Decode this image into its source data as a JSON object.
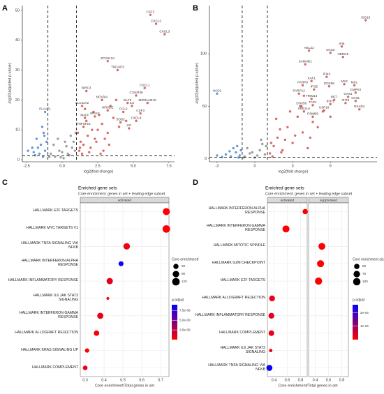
{
  "chart_data": [
    {
      "type": "scatter",
      "panel": "A",
      "x_label": "log2(fold change)",
      "y_label": "-log10(adjusted p-value)",
      "xlim": [
        -2.8,
        7.9
      ],
      "ylim": [
        -0.7,
        51.6
      ],
      "xticks": [
        -2.5,
        {
          "value": 0,
          "label": "0.0"
        },
        2.5,
        {
          "value": 5,
          "label": "5.0"
        },
        7.5
      ],
      "yticks": [
        0,
        10,
        20,
        30,
        40,
        50
      ],
      "vlines": [
        -1,
        1
      ],
      "hline": 1.3,
      "series": [
        {
          "color": "#4f86d1",
          "x": [
            -1.2,
            -1.5,
            -1.8,
            -2.1,
            -1.3,
            -1.6,
            -1.1,
            -2.4,
            -1.9,
            -1.4,
            -1.7,
            -1.25,
            -2.0,
            -1.35
          ],
          "y": [
            3,
            5,
            7,
            4,
            9,
            2,
            6,
            3,
            1.5,
            11,
            4,
            8,
            2.5,
            1
          ]
        },
        {
          "color": "#4f86d1",
          "x": [
            -1.2
          ],
          "y": [
            16
          ],
          "labels": [
            "PLAAT1"
          ]
        },
        {
          "color": "#8c8c8c",
          "x": [
            -0.8,
            -0.5,
            -0.2,
            0.1,
            0.4,
            0.7,
            -0.6,
            0.2,
            0.5,
            0.9,
            -0.3,
            0,
            0.6,
            -0.9,
            0.3,
            0.8,
            -0.1,
            0.95
          ],
          "y": [
            2,
            1,
            3,
            0.5,
            2,
            4,
            5,
            6,
            1.5,
            3,
            7,
            2.5,
            8,
            1,
            4.5,
            6,
            0.8,
            9
          ]
        },
        {
          "color": "#d5504a",
          "x": [
            1.2,
            1.5,
            1.8,
            2.1,
            2.4,
            2.8,
            3.2,
            3.6,
            4.0,
            1.4,
            1.7,
            2.0,
            2.6,
            3.0,
            3.4,
            1.3,
            2.2,
            2.9,
            3.8,
            4.5,
            1.1,
            1.9,
            2.5,
            3.3,
            1.6,
            2.3,
            1.25,
            2.7
          ],
          "y": [
            3,
            5,
            8,
            10,
            6,
            12,
            9,
            14,
            11,
            2,
            13,
            4,
            15,
            7,
            18,
            6,
            16,
            3,
            20,
            13,
            9,
            2.5,
            10,
            5,
            17,
            7,
            4,
            2
          ]
        },
        {
          "color": "#d5504a",
          "x": [
            6.2,
            6.6,
            7.2,
            3.2,
            3.9,
            5.8,
            5.2,
            6.0,
            1.7,
            2.8,
            1.4,
            4.6,
            3.2,
            4.3,
            4.9,
            5.5,
            5.2,
            4.1,
            4.7,
            1.6,
            2.3,
            1.5
          ],
          "y": [
            48.5,
            45.5,
            42,
            33,
            30,
            24,
            21.5,
            19,
            23,
            20,
            18,
            19,
            16.5,
            16,
            18,
            15.5,
            13,
            12.5,
            10.5,
            14,
            14.5,
            11
          ],
          "labels": [
            "CSF2",
            "CXCL2",
            "CXCL3",
            "ZC3H12A",
            "TNFAIP3",
            "CXCL1",
            "C15orf48",
            "MIR3142HG",
            "BIRC3",
            "NFKBIA",
            "SLC11A2",
            "ELF3",
            "NFKBIZ",
            "CCL2",
            "IL6",
            "CSF3",
            "CXCL8",
            "SOD2",
            "LIF",
            "MAFF",
            "IRAK2",
            "TNFSF15"
          ]
        }
      ]
    },
    {
      "type": "scatter",
      "panel": "B",
      "x_label": "log2(fold change)",
      "y_label": "-log10(adjusted p-value)",
      "xlim": [
        -3.6,
        9.7
      ],
      "ylim": [
        -3,
        146
      ],
      "xticks": [
        -3,
        0,
        3,
        6
      ],
      "yticks": [
        0,
        50,
        100
      ],
      "vlines": [
        -1,
        1
      ],
      "hline": 1.3,
      "series": [
        {
          "color": "#4f86d1",
          "x": [
            -1.2,
            -1.5,
            -1.9,
            -2.3,
            -1.1,
            -1.7,
            -2.6,
            -1.4,
            -2.0,
            -1.3,
            -3.0
          ],
          "y": [
            3,
            6,
            2,
            4,
            8,
            10,
            1.5,
            12,
            7,
            1,
            3
          ]
        },
        {
          "color": "#4f86d1",
          "x": [
            -3.0
          ],
          "y": [
            62
          ],
          "labels": [
            "HAO1"
          ]
        },
        {
          "color": "#8c8c8c",
          "x": [
            -0.8,
            -0.4,
            0,
            0.4,
            0.8,
            -0.6,
            0.2,
            0.6,
            -0.2,
            0.9,
            -0.9,
            0.5
          ],
          "y": [
            2,
            5,
            1,
            8,
            4,
            10,
            3,
            14,
            6,
            12,
            1,
            18
          ]
        },
        {
          "color": "#d5504a",
          "x": [
            1.2,
            1.5,
            1.8,
            2.2,
            2.6,
            3.0,
            3.4,
            3.8,
            4.2,
            4.6,
            1.4,
            2.0,
            2.8,
            3.6,
            4.4,
            5.0,
            1.7,
            2.4,
            3.2,
            5.4,
            6.0,
            1.3,
            2.1,
            3.9
          ],
          "y": [
            5,
            12,
            20,
            8,
            30,
            15,
            40,
            25,
            10,
            35,
            2,
            28,
            45,
            50,
            20,
            30,
            38,
            18,
            22,
            45,
            40,
            15,
            6,
            60
          ]
        },
        {
          "color": "#d5504a",
          "x": [
            8.8,
            6.9,
            7.0,
            6.0,
            4.3,
            4.0,
            5.7,
            4.5,
            5.9,
            7.9,
            7.1,
            8.0,
            3.8,
            4.7,
            3.5,
            4.5,
            6.0,
            6.3,
            7.4,
            7.2,
            8.0,
            8.3,
            3.7,
            4.6,
            3.9,
            4.6,
            5.5
          ],
          "y": [
            132,
            107,
            97,
            101,
            103,
            90,
            78,
            74,
            69,
            70,
            71,
            63,
            70,
            66,
            62,
            57,
            52,
            56,
            59,
            53,
            55,
            47,
            50,
            51,
            45,
            40,
            46
          ],
          "labels": [
            "ISG15",
            "IFI6",
            "HERC5",
            "OAS3",
            "HELZ2",
            "SAMHD1",
            "IFI44",
            "XAF1",
            "DDX58",
            "MX1",
            "MX2",
            "CMPK2",
            "PARP9",
            "IFI35",
            "PARP12",
            "TRIM14",
            "IFIH1",
            "IRF7",
            "OAS1",
            "IFIT3",
            "OASL",
            "RSAD2",
            "DHX58",
            "TAP1",
            "UBE2L6",
            "PSMB9",
            "USP18"
          ]
        }
      ]
    },
    {
      "type": "dot",
      "panel": "C",
      "title": "Enriched gene sets",
      "subtitle": "Core enrichment: genes in set + leading edge subset",
      "x_label": "Core enrichment/Total genes in set",
      "xlim": [
        0.274,
        0.744
      ],
      "xticks": [
        0.3,
        0.4,
        0.5,
        0.6,
        0.7
      ],
      "categories": [
        "HALLMARK E2F TARGETS",
        "HALLMARK MYC TARGETS V1",
        "HALLMARK TNFA SIGNALING VIA\nNFKB",
        "HALLMARK INTERFERON ALPHA\nRESPONSE",
        "HALLMARK INFLAMMATORY RESPONSE",
        "HALLMARK IL6 JAK STAT3\nSIGNALING",
        "HALLMARK INTERFERON GAMMA\nRESPONSE",
        "HALLMARK ALLOGRAFT REJECTION",
        "HALLMARK KRAS SIGNALING UP",
        "HALLMARK COMPLEMENT"
      ],
      "facets": [
        {
          "label": "activated",
          "x": [
            0.73,
            0.73,
            0.52,
            0.49,
            0.43,
            0.42,
            0.38,
            0.36,
            0.31,
            0.3
          ],
          "size": [
            105,
            120,
            90,
            55,
            85,
            32,
            80,
            65,
            45,
            50
          ],
          "p_adjust": [
            1e-10,
            1e-10,
            5e-10,
            8.5e-09,
            1e-09,
            2e-10,
            8e-10,
            3e-10,
            1e-10,
            5e-10
          ]
        }
      ],
      "size_title": "Core enrichment/",
      "size_lim": [
        30,
        125
      ],
      "size_ticks": [
        60,
        90,
        120
      ],
      "color_title": "p.adjust",
      "color_lim": [
        0,
        9e-09
      ],
      "colors": [
        "#ff0000",
        "#0000ff"
      ],
      "color_ticks": [
        {
          "value": 7.5e-09,
          "label": "7.5e-09"
        },
        {
          "value": 5e-09,
          "label": "5.0e-09"
        },
        {
          "value": 2.5e-09,
          "label": "2.5e-09"
        }
      ]
    },
    {
      "type": "dot",
      "panel": "D",
      "title": "Enriched gene sets",
      "subtitle": "Core enrichment: genes in set + leading edge subset",
      "x_label": "Core enrichment/Total genes in set",
      "xlim": [
        0.3,
        0.9
      ],
      "xticks": [
        0.4,
        0.6,
        0.8
      ],
      "categories": [
        "HALLMARK INTERFERON ALPHA\nRESPONSE",
        "HALLMARK INTERFERON GAMMA\nRESPONSE",
        "HALLMARK MITOTIC SPINDLE",
        "HALLMARK G2M CHECKPOINT",
        "HALLMARK E2F TARGETS",
        "HALLMARK ALLOGRAFT REJECTION",
        "HALLMARK INFLAMMATORY RESPONSE",
        "HALLMARK COMPLEMENT",
        "HALLMARK IL6 JAK STAT3\nSIGNALING",
        "HALLMARK TNFA SIGNALING VIA\nNFKB"
      ],
      "facets": [
        {
          "label": "activated",
          "x": [
            0.87,
            0.58,
            null,
            null,
            null,
            0.37,
            0.36,
            0.36,
            0.35,
            0.33
          ],
          "size": [
            50,
            90,
            null,
            null,
            null,
            60,
            60,
            55,
            25,
            65
          ],
          "p_adjust": [
            1e-06,
            1e-06,
            null,
            null,
            null,
            2e-05,
            3e-05,
            2e-05,
            1e-05,
            0.00025
          ]
        },
        {
          "label": "suppressed",
          "x": [
            null,
            null,
            0.5,
            0.48,
            0.45,
            null,
            null,
            null,
            null,
            null
          ],
          "size": [
            null,
            null,
            85,
            90,
            95,
            null,
            null,
            null,
            null,
            null
          ],
          "p_adjust": [
            null,
            null,
            1e-06,
            1e-06,
            1e-06,
            null,
            null,
            null,
            null,
            null
          ]
        }
      ],
      "size_title": "Core enrichment size",
      "size_lim": [
        20,
        110
      ],
      "size_ticks": [
        50,
        75,
        100
      ],
      "color_title": "p.adjust",
      "color_lim": [
        0,
        0.00026
      ],
      "colors": [
        "#ff0000",
        "#0000ff"
      ],
      "color_ticks": [
        {
          "value": 0.0002,
          "label": "2e-04"
        },
        {
          "value": 0.0001,
          "label": "1e-04"
        }
      ]
    }
  ]
}
